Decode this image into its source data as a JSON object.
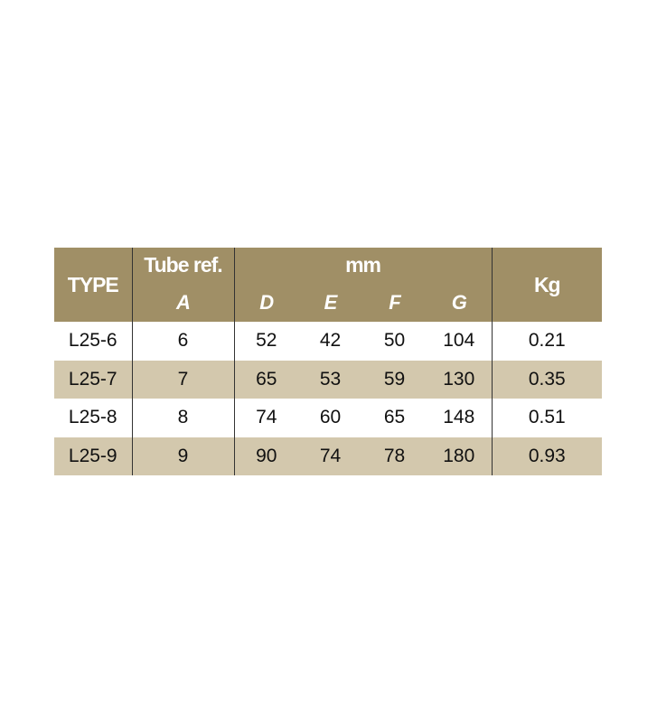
{
  "header": {
    "type": "TYPE",
    "tube_ref": "Tube ref.",
    "mm": "mm",
    "kg": "Kg",
    "subcols": [
      "A",
      "D",
      "E",
      "F",
      "G"
    ]
  },
  "rows": [
    [
      "L25-6",
      "6",
      "52",
      "42",
      "50",
      "104",
      "0.21"
    ],
    [
      "L25-7",
      "7",
      "65",
      "53",
      "59",
      "130",
      "0.35"
    ],
    [
      "L25-8",
      "8",
      "74",
      "60",
      "65",
      "148",
      "0.51"
    ],
    [
      "L25-9",
      "9",
      "90",
      "74",
      "78",
      "180",
      "0.93"
    ]
  ],
  "colors": {
    "header_bg": "#a08f66",
    "shaded_row": "#d3c8ad"
  }
}
